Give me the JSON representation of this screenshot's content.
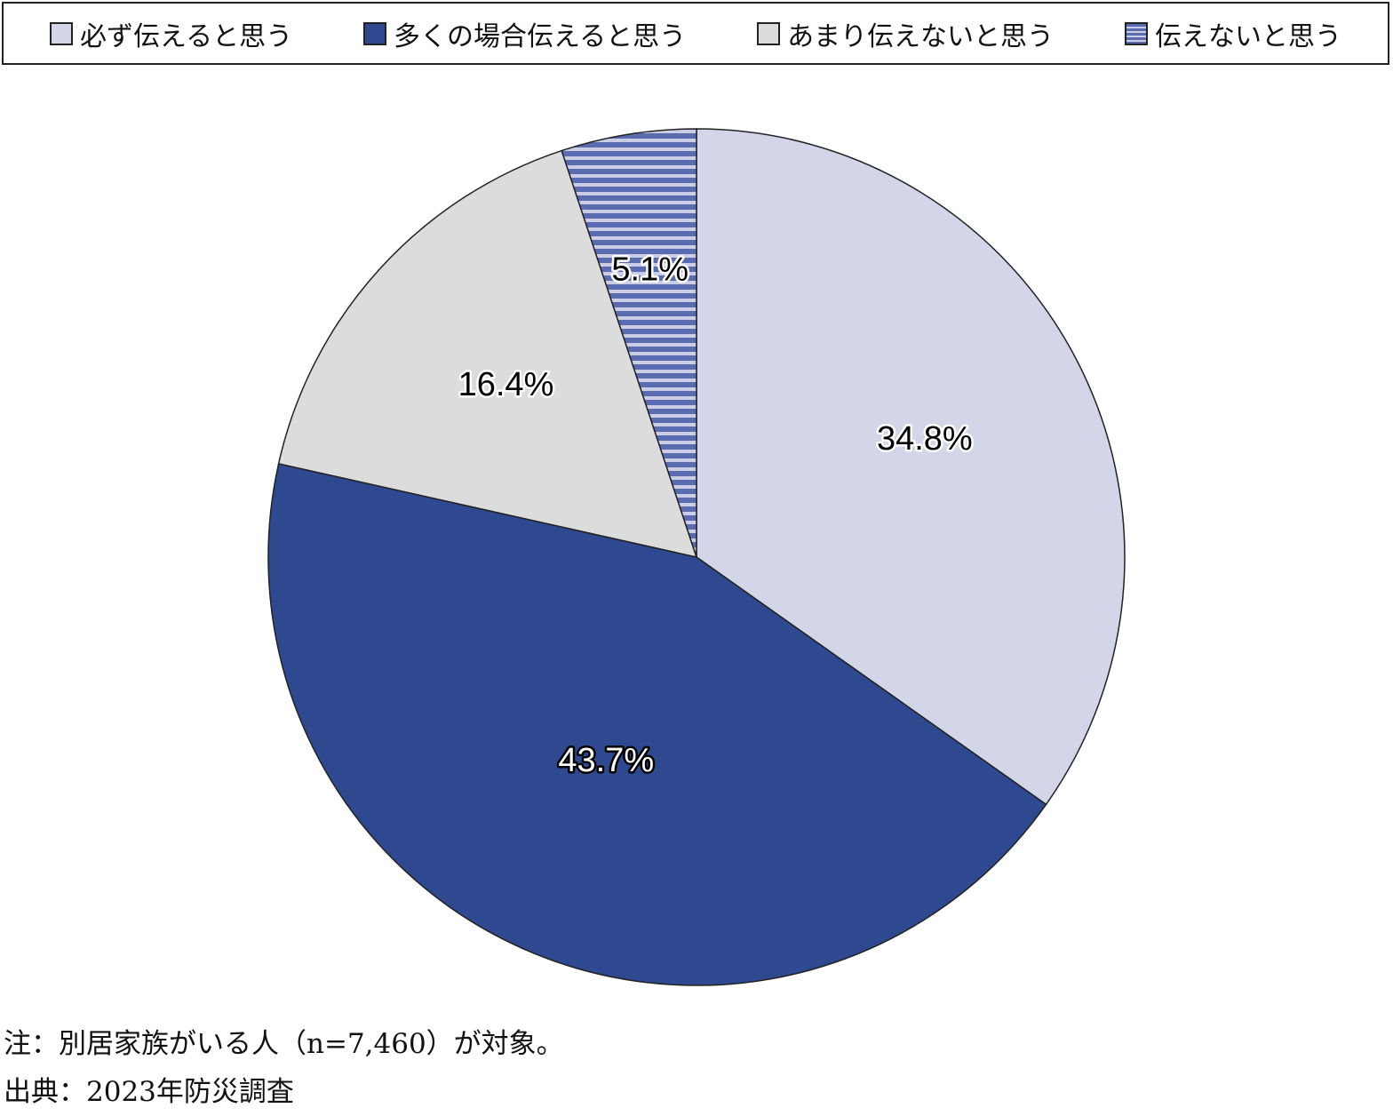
{
  "chart_data": {
    "type": "pie",
    "legend_position": "top",
    "start_angle_deg": 0,
    "direction": "clockwise",
    "slices": [
      {
        "label": "必ず伝えると思う",
        "value": 34.8,
        "display": "34.8%",
        "color": "#d3d6e9",
        "pattern": "solid",
        "label_color": "#000000"
      },
      {
        "label": "多くの場合伝えると思う",
        "value": 43.7,
        "display": "43.7%",
        "color": "#2f4990",
        "pattern": "solid",
        "label_color": "#ffffff"
      },
      {
        "label": "あまり伝えないと思う",
        "value": 16.4,
        "display": "16.4%",
        "color": "#dcdcdc",
        "pattern": "solid",
        "label_color": "#000000"
      },
      {
        "label": "伝えないと思う",
        "value": 5.1,
        "display": "5.1%",
        "color": "#5b6bb0",
        "pattern": "horizontal-stripes",
        "stripe_color": "#c9cde6",
        "label_color": "#000000"
      }
    ]
  },
  "notes": {
    "note": "注：別居家族がいる人（n=7,460）が対象。",
    "source": "出典：2023年防災調査"
  }
}
